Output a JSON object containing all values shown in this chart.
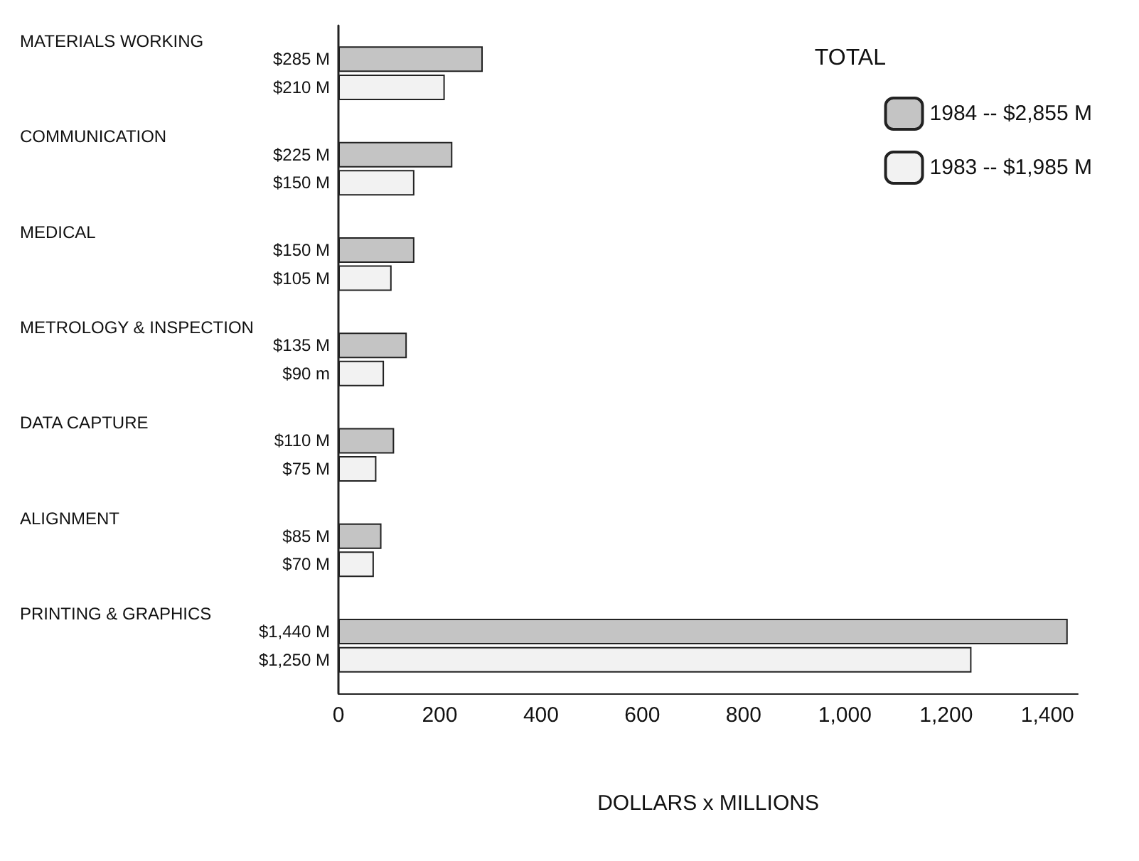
{
  "chart_data": {
    "type": "bar",
    "orientation": "horizontal",
    "categories": [
      "MATERIALS WORKING",
      "COMMUNICATION",
      "MEDICAL",
      "METROLOGY & INSPECTION",
      "DATA CAPTURE",
      "ALIGNMENT",
      "PRINTING & GRAPHICS"
    ],
    "series": [
      {
        "name": "1984 -- $2,855 M",
        "color": "#c4c4c4",
        "values": [
          285,
          225,
          150,
          135,
          110,
          85,
          1440
        ],
        "value_labels": [
          "$285 M",
          "$225 M",
          "$150 M",
          "$135 M",
          "$110 M",
          "$85 M",
          "$1,440 M"
        ]
      },
      {
        "name": "1983 -- $1,985 M",
        "color": "#f2f2f2",
        "values": [
          210,
          150,
          105,
          90,
          75,
          70,
          1250
        ],
        "value_labels": [
          "$210 M",
          "$150 M",
          "$105 M",
          "$90 m",
          "$75 M",
          "$70 M",
          "$1,250 M"
        ]
      }
    ],
    "legend_title": "TOTAL",
    "legend": "top right",
    "xlabel": "DOLLARS x MILLIONS",
    "xlim": [
      0,
      1460
    ],
    "xticks": [
      0,
      200,
      400,
      600,
      800,
      {
        "value": 1000,
        "label": "1,000"
      },
      {
        "value": 1200,
        "label": "1,200"
      },
      {
        "value": 1400,
        "label": "1,400"
      }
    ],
    "grid": false
  }
}
